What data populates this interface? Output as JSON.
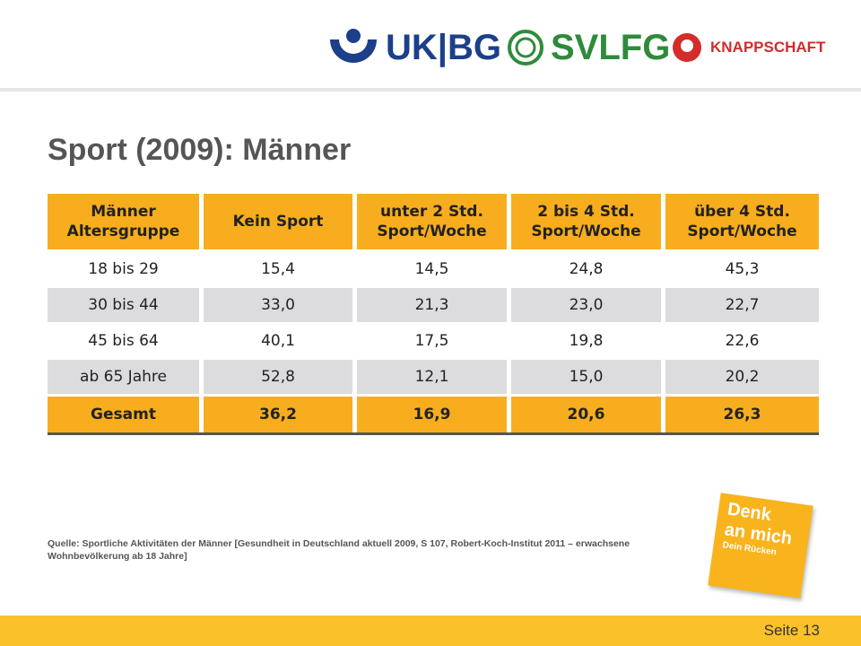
{
  "header": {
    "logos": [
      "UK|BG",
      "SVLFG",
      "KNAPPSCHAFT"
    ]
  },
  "title": "Sport (2009): Männer",
  "table": {
    "columns": [
      "Männer\nAltersgruppe",
      "Kein Sport",
      "unter 2 Std.\nSport/Woche",
      "2 bis 4 Std.\nSport/Woche",
      "über 4 Std.\nSport/Woche"
    ],
    "rows": [
      [
        "18 bis 29",
        "15,4",
        "14,5",
        "24,8",
        "45,3"
      ],
      [
        "30 bis 44",
        "33,0",
        "21,3",
        "23,0",
        "22,7"
      ],
      [
        "45 bis 64",
        "40,1",
        "17,5",
        "19,8",
        "22,6"
      ],
      [
        "ab 65 Jahre",
        "52,8",
        "12,1",
        "15,0",
        "20,2"
      ]
    ],
    "total": [
      "Gesamt",
      "36,2",
      "16,9",
      "20,6",
      "26,3"
    ]
  },
  "source": "Quelle: Sportliche Aktivitäten der Männer [Gesundheit in Deutschland aktuell 2009, S 107, Robert-Koch-Institut 2011 – erwachsene Wohnbevölkerung ab 18 Jahre]",
  "sticker": {
    "line1": "Denk",
    "line2": "an mich",
    "line3": "Dein Rücken"
  },
  "footer": {
    "page": "Seite 13"
  }
}
